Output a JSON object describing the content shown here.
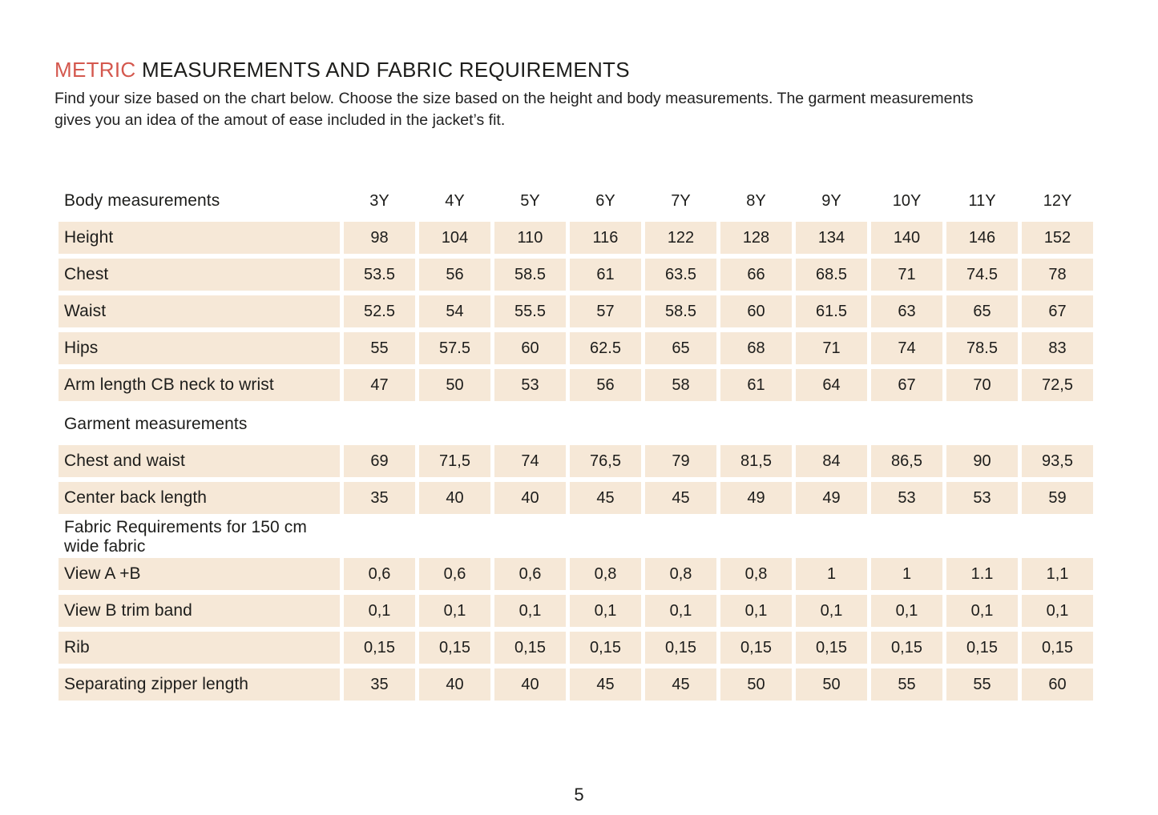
{
  "colors": {
    "accent_red": "#d4584e",
    "cell_beige": "#f6e8d7",
    "text_dark": "#1d1d1b"
  },
  "header": {
    "title_highlight": "METRIC",
    "title_rest": " MEASUREMENTS AND FABRIC REQUIREMENTS",
    "intro_lines": [
      "Find your size based on the chart below. Choose the size based on the height and body measurements. The garment measurements",
      "gives you an idea of the amout of ease included in the jacket’s fit."
    ]
  },
  "table": {
    "columns": [
      "3Y",
      "4Y",
      "5Y",
      "6Y",
      "7Y",
      "8Y",
      "9Y",
      "10Y",
      "11Y",
      "12Y"
    ],
    "sections": [
      {
        "header": "Body measurements",
        "rows": [
          {
            "label": "Height",
            "values": [
              "98",
              "104",
              "110",
              "116",
              "122",
              "128",
              "134",
              "140",
              "146",
              "152"
            ]
          },
          {
            "label": "Chest",
            "values": [
              "53.5",
              "56",
              "58.5",
              "61",
              "63.5",
              "66",
              "68.5",
              "71",
              "74.5",
              "78"
            ]
          },
          {
            "label": "Waist",
            "values": [
              "52.5",
              "54",
              "55.5",
              "57",
              "58.5",
              "60",
              "61.5",
              "63",
              "65",
              "67"
            ]
          },
          {
            "label": "Hips",
            "values": [
              "55",
              "57.5",
              "60",
              "62.5",
              "65",
              "68",
              "71",
              "74",
              "78.5",
              "83"
            ]
          },
          {
            "label": "Arm length CB neck to wrist",
            "values": [
              "47",
              "50",
              "53",
              "56",
              "58",
              "61",
              "64",
              "67",
              "70",
              "72,5"
            ]
          }
        ]
      },
      {
        "header": "Garment measurements",
        "rows": [
          {
            "label": "Chest and waist",
            "values": [
              "69",
              "71,5",
              "74",
              "76,5",
              "79",
              "81,5",
              "84",
              "86,5",
              "90",
              "93,5"
            ]
          },
          {
            "label": "Center back length",
            "values": [
              "35",
              "40",
              "40",
              "45",
              "45",
              "49",
              "49",
              "53",
              "53",
              "59"
            ]
          }
        ]
      },
      {
        "header": "Fabric Requirements for 150 cm wide fabric",
        "rows": [
          {
            "label": "View A +B",
            "values": [
              "0,6",
              "0,6",
              "0,6",
              "0,8",
              "0,8",
              "0,8",
              "1",
              "1",
              "1.1",
              "1,1"
            ]
          },
          {
            "label": "View B trim band",
            "values": [
              "0,1",
              "0,1",
              "0,1",
              "0,1",
              "0,1",
              "0,1",
              "0,1",
              "0,1",
              "0,1",
              "0,1"
            ]
          },
          {
            "label": "Rib",
            "values": [
              "0,15",
              "0,15",
              "0,15",
              "0,15",
              "0,15",
              "0,15",
              "0,15",
              "0,15",
              "0,15",
              "0,15"
            ]
          },
          {
            "label": "Separating zipper length",
            "values": [
              "35",
              "40",
              "40",
              "45",
              "45",
              "50",
              "50",
              "55",
              "55",
              "60"
            ]
          }
        ]
      }
    ]
  },
  "footer": {
    "page_number": "5"
  }
}
